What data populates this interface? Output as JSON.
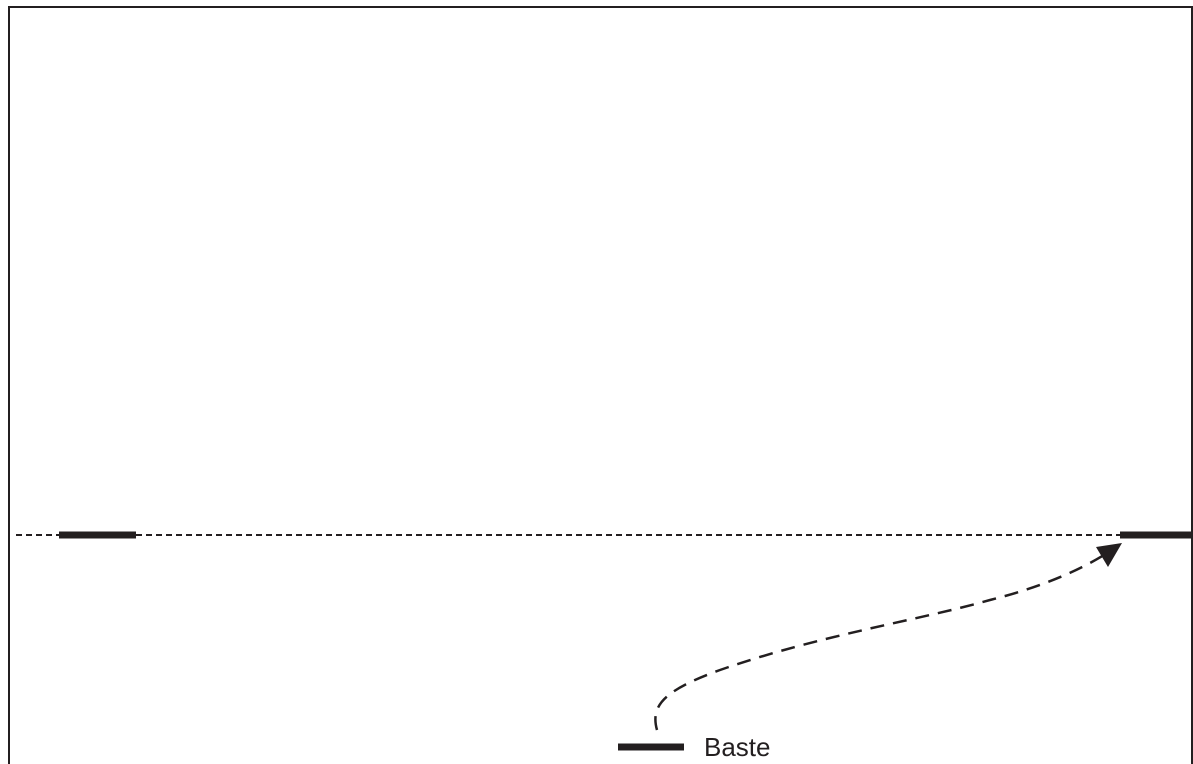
{
  "legend": {
    "label": "Baste"
  },
  "colors": {
    "ink": "#231f20",
    "background": "#ffffff"
  }
}
